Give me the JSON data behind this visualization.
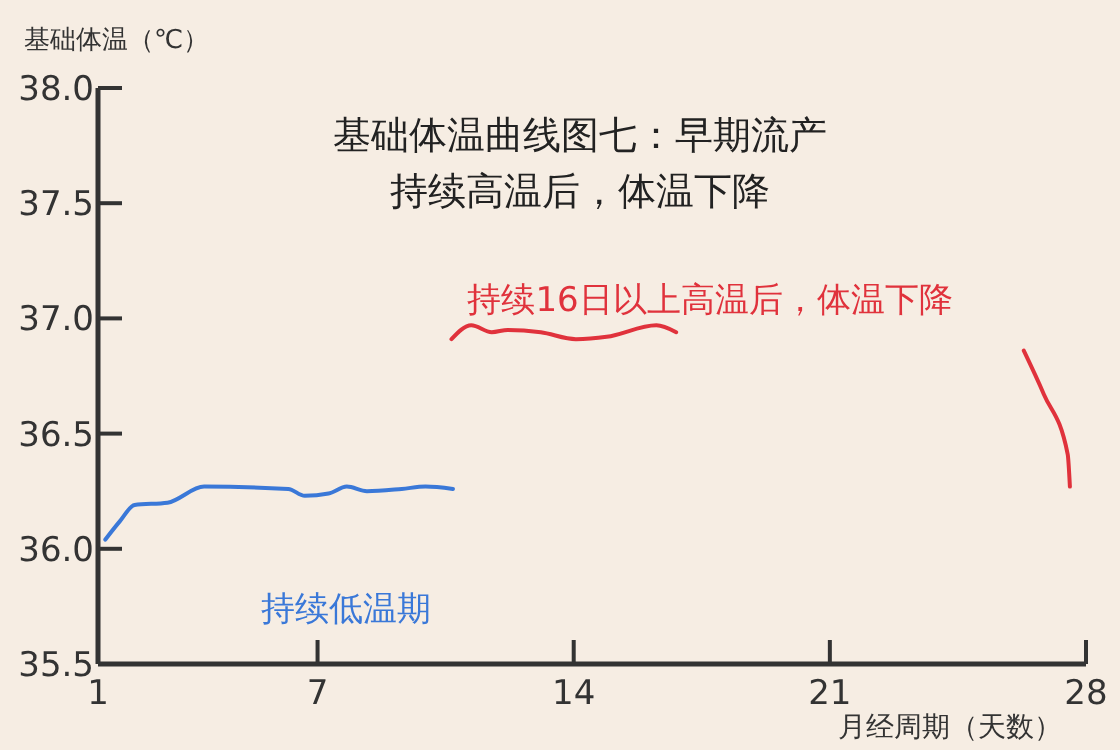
{
  "chart_data": {
    "type": "line",
    "title": "基础体温曲线图七：早期流产",
    "subtitle": "持续高温后，体温下降",
    "ylabel": "基础体温（℃）",
    "xlabel": "月经周期（天数）",
    "xlim": [
      1,
      28
    ],
    "xticks": [
      1,
      7,
      14,
      21,
      28
    ],
    "ylim": [
      35.5,
      38.0
    ],
    "yticks": [
      {
        "value": 35.5,
        "label": "35.5"
      },
      {
        "value": 36.0,
        "label": "36.0"
      },
      {
        "value": 36.5,
        "label": "36.5"
      },
      {
        "value": 37.0,
        "label": "37.0"
      },
      {
        "value": 37.5,
        "label": "37.5"
      },
      {
        "value": 38.0,
        "label": "38.0"
      }
    ],
    "series": [
      {
        "name": "持续低温期",
        "color": "#3a78d8",
        "x": [
          1.2,
          1.6,
          2.0,
          2.9,
          3.9,
          6.2,
          6.65,
          7.3,
          7.8,
          8.35,
          9.3,
          9.95,
          10.7
        ],
        "values": [
          36.04,
          36.12,
          36.19,
          36.2,
          36.27,
          36.26,
          36.23,
          36.24,
          36.27,
          36.25,
          36.26,
          36.27,
          36.26
        ]
      },
      {
        "name": "持续16日以上高温后，体温下降",
        "color": "#e0323c",
        "x": [
          10.66,
          11.2,
          11.76,
          12.2,
          13.1,
          14.06,
          14.9,
          16.26,
          16.8,
          20,
          26.3,
          26.85,
          27.5,
          27.56
        ],
        "values": [
          36.91,
          36.97,
          36.94,
          36.95,
          36.94,
          36.91,
          36.92,
          36.97,
          36.94,
          null,
          36.86,
          36.67,
          36.41,
          36.27
        ]
      }
    ],
    "grid": false,
    "marker": "none",
    "line_style": "solid"
  }
}
